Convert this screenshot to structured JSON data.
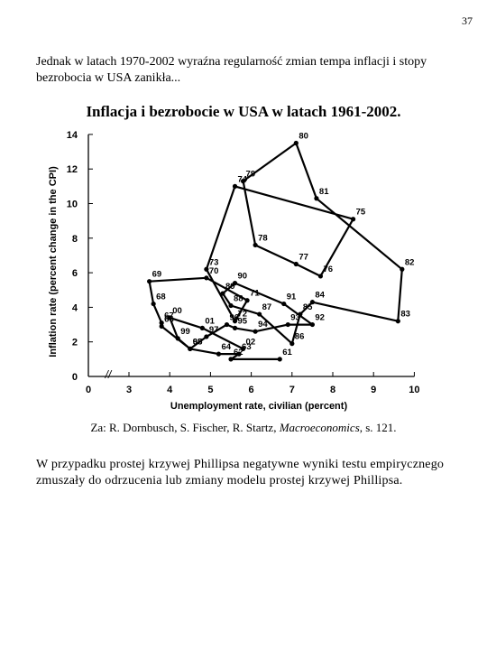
{
  "page": {
    "number": "37"
  },
  "intro": {
    "text": "Jednak w latach 1970-2002 wyraźna regularność zmian tempa inflacji i stopy bezrobocia w USA zanikła..."
  },
  "chart_data": {
    "type": "line",
    "title": "Inflacja i bezrobocie w USA w latach 1961-2002.",
    "xlabel": "Unemployment rate, civilian (percent)",
    "ylabel": "Inflation rate (percent change in the CPI)",
    "xlim": [
      0,
      10
    ],
    "ylim": [
      0,
      14
    ],
    "x_ticks": [
      "0",
      "3",
      "4",
      "5",
      "6",
      "7",
      "8",
      "9",
      "10"
    ],
    "y_ticks": [
      "0",
      "2",
      "4",
      "6",
      "8",
      "10",
      "12",
      "14"
    ],
    "axis_break": "//",
    "grid": false,
    "points": [
      {
        "label": "61",
        "x": 6.7,
        "y": 1.0
      },
      {
        "label": "62",
        "x": 5.5,
        "y": 1.0
      },
      {
        "label": "63",
        "x": 5.7,
        "y": 1.3
      },
      {
        "label": "64",
        "x": 5.2,
        "y": 1.3
      },
      {
        "label": "65",
        "x": 4.5,
        "y": 1.6
      },
      {
        "label": "66",
        "x": 3.8,
        "y": 2.9
      },
      {
        "label": "67",
        "x": 3.8,
        "y": 3.1
      },
      {
        "label": "68",
        "x": 3.6,
        "y": 4.2
      },
      {
        "label": "69",
        "x": 3.5,
        "y": 5.5
      },
      {
        "label": "70",
        "x": 4.9,
        "y": 5.7
      },
      {
        "label": "71",
        "x": 5.9,
        "y": 4.4
      },
      {
        "label": "72",
        "x": 5.6,
        "y": 3.2
      },
      {
        "label": "73",
        "x": 4.9,
        "y": 6.2
      },
      {
        "label": "74",
        "x": 5.6,
        "y": 11.0
      },
      {
        "label": "75",
        "x": 8.5,
        "y": 9.1
      },
      {
        "label": "76",
        "x": 7.7,
        "y": 5.8
      },
      {
        "label": "77",
        "x": 7.1,
        "y": 6.5
      },
      {
        "label": "78",
        "x": 6.1,
        "y": 7.6
      },
      {
        "label": "79",
        "x": 5.8,
        "y": 11.3
      },
      {
        "label": "80",
        "x": 7.1,
        "y": 13.5
      },
      {
        "label": "81",
        "x": 7.6,
        "y": 10.3
      },
      {
        "label": "82",
        "x": 9.7,
        "y": 6.2
      },
      {
        "label": "83",
        "x": 9.6,
        "y": 3.2
      },
      {
        "label": "84",
        "x": 7.5,
        "y": 4.3
      },
      {
        "label": "85",
        "x": 7.2,
        "y": 3.6
      },
      {
        "label": "86",
        "x": 7.0,
        "y": 1.9
      },
      {
        "label": "87",
        "x": 6.2,
        "y": 3.6
      },
      {
        "label": "88",
        "x": 5.5,
        "y": 4.1
      },
      {
        "label": "89",
        "x": 5.3,
        "y": 4.8
      },
      {
        "label": "90",
        "x": 5.6,
        "y": 5.4
      },
      {
        "label": "91",
        "x": 6.8,
        "y": 4.2
      },
      {
        "label": "92",
        "x": 7.5,
        "y": 3.0
      },
      {
        "label": "93",
        "x": 6.9,
        "y": 3.0
      },
      {
        "label": "94",
        "x": 6.1,
        "y": 2.6
      },
      {
        "label": "95",
        "x": 5.6,
        "y": 2.8
      },
      {
        "label": "96",
        "x": 5.4,
        "y": 3.0
      },
      {
        "label": "97",
        "x": 4.9,
        "y": 2.3
      },
      {
        "label": "98",
        "x": 4.5,
        "y": 1.6
      },
      {
        "label": "99",
        "x": 4.2,
        "y": 2.2
      },
      {
        "label": "00",
        "x": 4.0,
        "y": 3.4
      },
      {
        "label": "01",
        "x": 4.8,
        "y": 2.8
      },
      {
        "label": "02",
        "x": 5.8,
        "y": 1.6
      }
    ]
  },
  "source": {
    "prefix": "Za: R. Dornbusch, S. Fischer, R. Startz, ",
    "book": "Macroeconomics",
    "suffix": ", s. 121."
  },
  "conclusion": {
    "text": "W przypadku prostej krzywej Phillipsa negatywne wyniki testu empirycznego zmuszały do odrzucenia lub zmiany modelu prostej krzywej Phillipsa."
  }
}
